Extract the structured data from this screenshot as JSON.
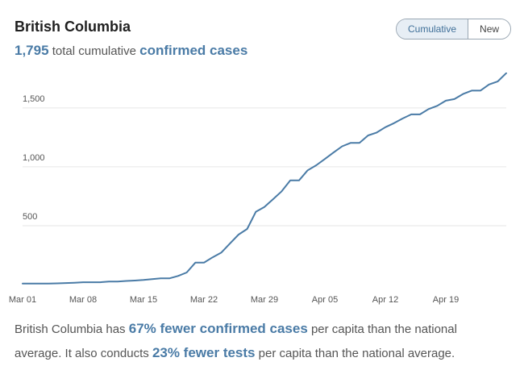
{
  "header": {
    "title": "British Columbia",
    "total_value": "1,795",
    "total_text": "total cumulative",
    "total_highlight": "confirmed cases"
  },
  "toggle": {
    "options": [
      "Cumulative",
      "New"
    ],
    "selected": "Cumulative"
  },
  "footer": {
    "part1": "British Columbia has ",
    "hl1": "67% fewer confirmed cases",
    "part2": " per capita than the national average. It also conducts ",
    "hl2": "23% fewer tests",
    "part3": " per capita than the national average."
  },
  "colors": {
    "line": "#4a7ba6",
    "grid": "#e6e6e6",
    "text": "#555555",
    "accent": "#4a7ba6"
  },
  "chart_data": {
    "type": "line",
    "title": "British Columbia",
    "xlabel": "",
    "ylabel": "",
    "ylim": [
      0,
      1800
    ],
    "grid": true,
    "x_ticks": [
      "Mar 01",
      "Mar 08",
      "Mar 15",
      "Mar 22",
      "Mar 29",
      "Apr 05",
      "Apr 12",
      "Apr 19"
    ],
    "y_ticks": [
      "500",
      "1,000",
      "1,500"
    ],
    "y_tick_values": [
      500,
      1000,
      1500
    ],
    "x_start": "2020-03-01",
    "series": [
      {
        "name": "Cumulative confirmed cases",
        "values": [
          8,
          8,
          9,
          9,
          10,
          13,
          16,
          20,
          20,
          20,
          26,
          26,
          31,
          34,
          39,
          46,
          53,
          53,
          73,
          103,
          186,
          186,
          231,
          271,
          348,
          424,
          472,
          617,
          659,
          725,
          792,
          884,
          884,
          970,
          1013,
          1066,
          1121,
          1174,
          1203,
          1203,
          1266,
          1291,
          1336,
          1370,
          1410,
          1445,
          1445,
          1490,
          1517,
          1561,
          1575,
          1618,
          1647,
          1647,
          1699,
          1724,
          1795
        ]
      }
    ]
  }
}
